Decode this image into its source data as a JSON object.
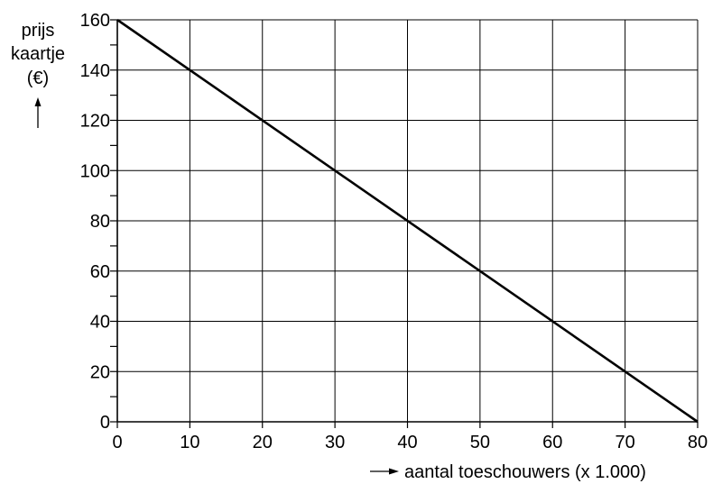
{
  "chart_data": {
    "type": "line",
    "title": "",
    "ylabel_lines": [
      "prijs",
      "kaartje",
      "(€)"
    ],
    "xlabel": "aantal toeschouwers (x 1.000)",
    "xlim": [
      0,
      80
    ],
    "ylim": [
      0,
      160
    ],
    "x_ticks": [
      0,
      10,
      20,
      30,
      40,
      50,
      60,
      70,
      80
    ],
    "y_ticks": [
      0,
      20,
      40,
      60,
      80,
      100,
      120,
      140,
      160
    ],
    "y_minor_step": 10,
    "grid": true,
    "series": [
      {
        "x": [
          0,
          80
        ],
        "y": [
          160,
          0
        ],
        "color": "#000000"
      }
    ]
  }
}
